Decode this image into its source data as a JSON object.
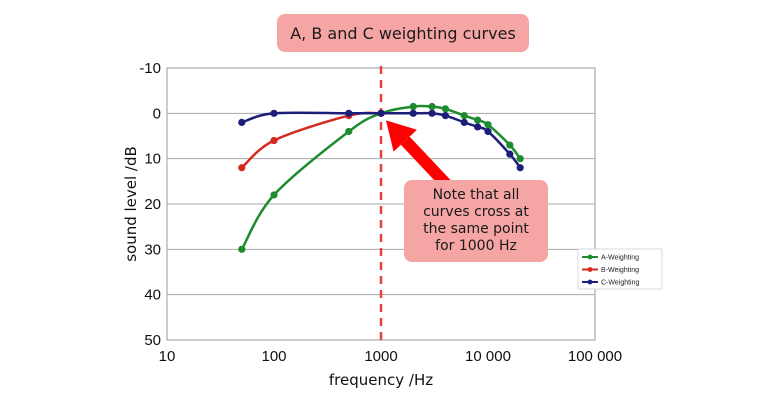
{
  "chart_data": {
    "type": "line",
    "title": "A, B and C weighting curves",
    "xlabel": "frequency /Hz",
    "ylabel": "sound level /dB",
    "xscale": "log",
    "xlim": [
      10,
      100000
    ],
    "ylim": [
      -10,
      50
    ],
    "y_inverted": true,
    "x_ticks": [
      "10",
      "100",
      "1000",
      "10 000",
      "100 000"
    ],
    "x_tick_values": [
      10,
      100,
      1000,
      10000,
      100000
    ],
    "y_ticks": [
      "-10",
      "0",
      "10",
      "20",
      "30",
      "40",
      "50"
    ],
    "y_tick_values": [
      -10,
      0,
      10,
      20,
      30,
      40,
      50
    ],
    "grid": "horizontal",
    "legend_position": "right",
    "series": [
      {
        "name": "A-Weighting",
        "color": "#1e8c2e",
        "points": [
          [
            50,
            30
          ],
          [
            100,
            18
          ],
          [
            500,
            4
          ],
          [
            1000,
            0
          ],
          [
            2000,
            -1.5
          ],
          [
            3000,
            -1.5
          ],
          [
            4000,
            -1
          ],
          [
            6000,
            0.5
          ],
          [
            8000,
            1.5
          ],
          [
            10000,
            2.5
          ],
          [
            16000,
            7
          ],
          [
            20000,
            10
          ]
        ]
      },
      {
        "name": "B-Weighting",
        "color": "#d42a1e",
        "points": [
          [
            50,
            12
          ],
          [
            100,
            6
          ],
          [
            500,
            0.5
          ],
          [
            1000,
            0
          ]
        ]
      },
      {
        "name": "C-Weighting",
        "color": "#1b1f7a",
        "points": [
          [
            50,
            2
          ],
          [
            100,
            0
          ],
          [
            500,
            0
          ],
          [
            1000,
            0
          ],
          [
            2000,
            0
          ],
          [
            3000,
            0
          ],
          [
            4000,
            0.5
          ],
          [
            6000,
            2
          ],
          [
            8000,
            3
          ],
          [
            10000,
            4
          ],
          [
            16000,
            9
          ],
          [
            20000,
            12
          ]
        ]
      }
    ],
    "annotations": {
      "marker_line_x": 1000,
      "marker_line_color": "#e84040",
      "arrow_color": "#ff0000",
      "note_lines": [
        "Note that all",
        "curves cross at",
        "the same point",
        "for 1000 Hz"
      ],
      "note_bg": "#f6a5a5"
    }
  },
  "title_bg": "#f6a5a5"
}
